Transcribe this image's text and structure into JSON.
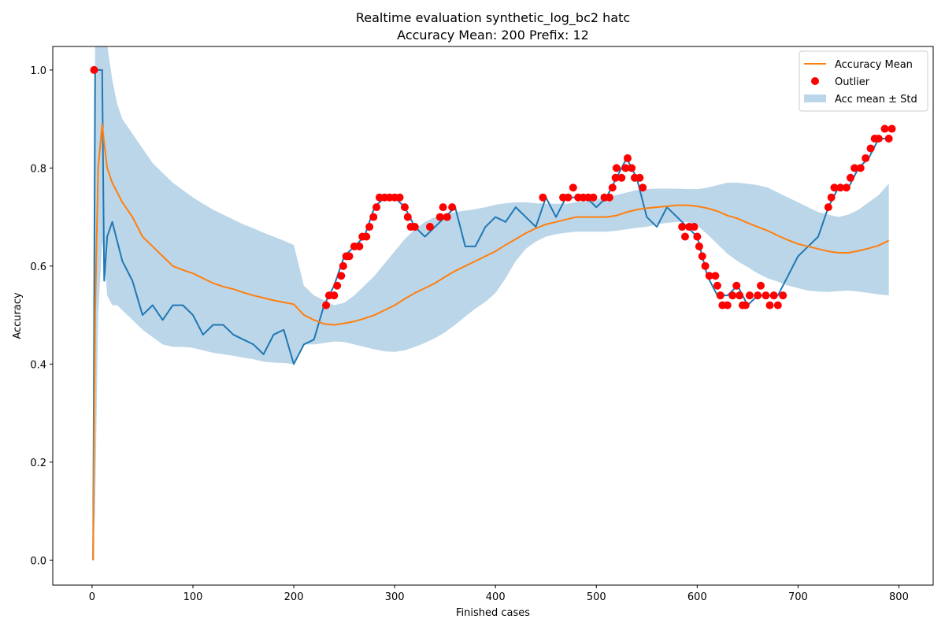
{
  "chart_data": {
    "type": "line",
    "title": "Realtime evaluation synthetic_log_bc2 hatc",
    "subtitle": "Accuracy Mean: 200 Prefix: 12",
    "x_label": "Finished cases",
    "y_label": "Accuracy",
    "xlim": [
      -39,
      834
    ],
    "ylim": [
      -0.051,
      1.048
    ],
    "xticks": [
      0,
      100,
      200,
      300,
      400,
      500,
      600,
      700,
      800
    ],
    "yticks": [
      {
        "value": 0,
        "label": "0.0"
      },
      0.2,
      0.4,
      0.6,
      0.8,
      {
        "value": 1,
        "label": "1.0"
      }
    ],
    "legend": "upper right",
    "x": [
      1,
      3,
      6,
      10,
      12,
      15,
      20,
      25,
      30,
      40,
      50,
      60,
      70,
      80,
      90,
      100,
      110,
      120,
      130,
      140,
      150,
      160,
      170,
      180,
      190,
      200,
      210,
      220,
      230,
      240,
      250,
      260,
      270,
      280,
      290,
      300,
      310,
      320,
      330,
      340,
      350,
      360,
      370,
      380,
      390,
      400,
      410,
      420,
      430,
      440,
      450,
      460,
      470,
      480,
      490,
      500,
      510,
      520,
      530,
      540,
      550,
      560,
      570,
      580,
      590,
      600,
      610,
      620,
      630,
      640,
      650,
      660,
      670,
      680,
      690,
      700,
      710,
      720,
      730,
      740,
      750,
      760,
      770,
      780,
      790
    ],
    "series": [
      {
        "kind": "band",
        "name": "Acc mean ± Std",
        "color": "#1f77b4",
        "opacity": 0.3,
        "upper": [
          0,
          1.1,
          1.2,
          1.15,
          1.1,
          1.05,
          0.98,
          0.93,
          0.9,
          0.87,
          0.84,
          0.81,
          0.79,
          0.77,
          0.755,
          0.74,
          0.727,
          0.715,
          0.705,
          0.695,
          0.685,
          0.677,
          0.668,
          0.66,
          0.652,
          0.643,
          0.56,
          0.54,
          0.53,
          0.52,
          0.525,
          0.54,
          0.56,
          0.58,
          0.605,
          0.63,
          0.655,
          0.675,
          0.69,
          0.7,
          0.705,
          0.71,
          0.713,
          0.716,
          0.72,
          0.725,
          0.728,
          0.73,
          0.73,
          0.728,
          0.727,
          0.727,
          0.727,
          0.73,
          0.733,
          0.736,
          0.74,
          0.745,
          0.75,
          0.755,
          0.757,
          0.758,
          0.758,
          0.758,
          0.757,
          0.757,
          0.76,
          0.765,
          0.77,
          0.77,
          0.768,
          0.765,
          0.76,
          0.75,
          0.74,
          0.73,
          0.72,
          0.71,
          0.705,
          0.7,
          0.705,
          0.715,
          0.73,
          0.745,
          0.768
        ],
        "lower": [
          0,
          0.1,
          0.5,
          0.65,
          0.62,
          0.54,
          0.52,
          0.52,
          0.51,
          0.49,
          0.47,
          0.455,
          0.44,
          0.435,
          0.435,
          0.433,
          0.428,
          0.423,
          0.42,
          0.417,
          0.413,
          0.41,
          0.405,
          0.403,
          0.402,
          0.4,
          0.44,
          0.44,
          0.443,
          0.446,
          0.445,
          0.44,
          0.435,
          0.43,
          0.426,
          0.425,
          0.428,
          0.435,
          0.443,
          0.453,
          0.465,
          0.48,
          0.497,
          0.513,
          0.527,
          0.545,
          0.575,
          0.61,
          0.635,
          0.65,
          0.66,
          0.665,
          0.668,
          0.67,
          0.67,
          0.67,
          0.67,
          0.672,
          0.675,
          0.678,
          0.68,
          0.685,
          0.688,
          0.69,
          0.69,
          0.683,
          0.665,
          0.645,
          0.625,
          0.61,
          0.598,
          0.585,
          0.575,
          0.568,
          0.56,
          0.555,
          0.55,
          0.548,
          0.547,
          0.549,
          0.55,
          0.548,
          0.545,
          0.542,
          0.54
        ]
      },
      {
        "kind": "line",
        "color": "#1f77b4",
        "values": [
          0,
          1.0,
          1.0,
          1.0,
          0.57,
          0.66,
          0.69,
          0.65,
          0.61,
          0.57,
          0.5,
          0.52,
          0.49,
          0.52,
          0.52,
          0.5,
          0.46,
          0.48,
          0.48,
          0.46,
          0.45,
          0.44,
          0.42,
          0.46,
          0.47,
          0.4,
          0.44,
          0.45,
          0.52,
          0.56,
          0.62,
          0.64,
          0.66,
          0.72,
          0.74,
          0.74,
          0.72,
          0.68,
          0.66,
          0.68,
          0.7,
          0.72,
          0.64,
          0.64,
          0.68,
          0.7,
          0.69,
          0.72,
          0.7,
          0.68,
          0.74,
          0.7,
          0.74,
          0.74,
          0.74,
          0.72,
          0.74,
          0.78,
          0.82,
          0.78,
          0.7,
          0.68,
          0.72,
          0.7,
          0.68,
          0.66,
          0.58,
          0.54,
          0.54,
          0.56,
          0.52,
          0.54,
          0.54,
          0.54,
          0.58,
          0.62,
          0.64,
          0.66,
          0.72,
          0.76,
          0.76,
          0.8,
          0.82,
          0.86,
          0.86
        ]
      },
      {
        "kind": "line",
        "name": "Accuracy Mean",
        "color": "#ff7f0e",
        "values": [
          0,
          0.5,
          0.8,
          0.89,
          0.85,
          0.8,
          0.77,
          0.75,
          0.73,
          0.7,
          0.66,
          0.64,
          0.62,
          0.6,
          0.592,
          0.585,
          0.575,
          0.565,
          0.558,
          0.553,
          0.546,
          0.54,
          0.535,
          0.53,
          0.526,
          0.522,
          0.5,
          0.49,
          0.482,
          0.48,
          0.483,
          0.487,
          0.493,
          0.5,
          0.51,
          0.52,
          0.533,
          0.545,
          0.555,
          0.565,
          0.578,
          0.59,
          0.6,
          0.61,
          0.62,
          0.63,
          0.643,
          0.655,
          0.667,
          0.677,
          0.685,
          0.69,
          0.695,
          0.7,
          0.7,
          0.7,
          0.7,
          0.703,
          0.71,
          0.715,
          0.718,
          0.72,
          0.722,
          0.724,
          0.724,
          0.722,
          0.718,
          0.712,
          0.703,
          0.697,
          0.688,
          0.68,
          0.672,
          0.662,
          0.653,
          0.645,
          0.64,
          0.635,
          0.63,
          0.627,
          0.627,
          0.631,
          0.636,
          0.642,
          0.652
        ]
      },
      {
        "kind": "scatter",
        "name": "Outlier",
        "color": "#ff0000",
        "x": [
          2,
          232,
          235,
          240,
          243,
          247,
          249,
          252,
          255,
          260,
          265,
          268,
          272,
          275,
          279,
          282,
          285,
          290,
          295,
          300,
          305,
          310,
          313,
          316,
          320,
          335,
          345,
          348,
          352,
          357,
          447,
          467,
          472,
          477,
          482,
          487,
          492,
          497,
          508,
          513,
          516,
          519,
          520,
          525,
          529,
          531,
          535,
          538,
          543,
          546,
          585,
          588,
          592,
          597,
          600,
          602,
          605,
          608,
          612,
          618,
          620,
          623,
          625,
          630,
          635,
          639,
          642,
          645,
          648,
          652,
          660,
          663,
          668,
          672,
          676,
          680,
          685,
          730,
          733,
          736,
          742,
          748,
          752,
          756,
          762,
          767,
          772,
          776,
          780,
          786,
          790,
          793
        ],
        "values": [
          1.0,
          0.52,
          0.54,
          0.54,
          0.56,
          0.58,
          0.6,
          0.62,
          0.62,
          0.64,
          0.64,
          0.66,
          0.66,
          0.68,
          0.7,
          0.72,
          0.74,
          0.74,
          0.74,
          0.74,
          0.74,
          0.72,
          0.7,
          0.68,
          0.68,
          0.68,
          0.7,
          0.72,
          0.7,
          0.72,
          0.74,
          0.74,
          0.74,
          0.76,
          0.74,
          0.74,
          0.74,
          0.74,
          0.74,
          0.74,
          0.76,
          0.78,
          0.8,
          0.78,
          0.8,
          0.82,
          0.8,
          0.78,
          0.78,
          0.76,
          0.68,
          0.66,
          0.68,
          0.68,
          0.66,
          0.64,
          0.62,
          0.6,
          0.58,
          0.58,
          0.56,
          0.54,
          0.52,
          0.52,
          0.54,
          0.56,
          0.54,
          0.52,
          0.52,
          0.54,
          0.54,
          0.56,
          0.54,
          0.52,
          0.54,
          0.52,
          0.54,
          0.72,
          0.74,
          0.76,
          0.76,
          0.76,
          0.78,
          0.8,
          0.8,
          0.82,
          0.84,
          0.86,
          0.86,
          0.88,
          0.86,
          0.88
        ]
      }
    ]
  }
}
